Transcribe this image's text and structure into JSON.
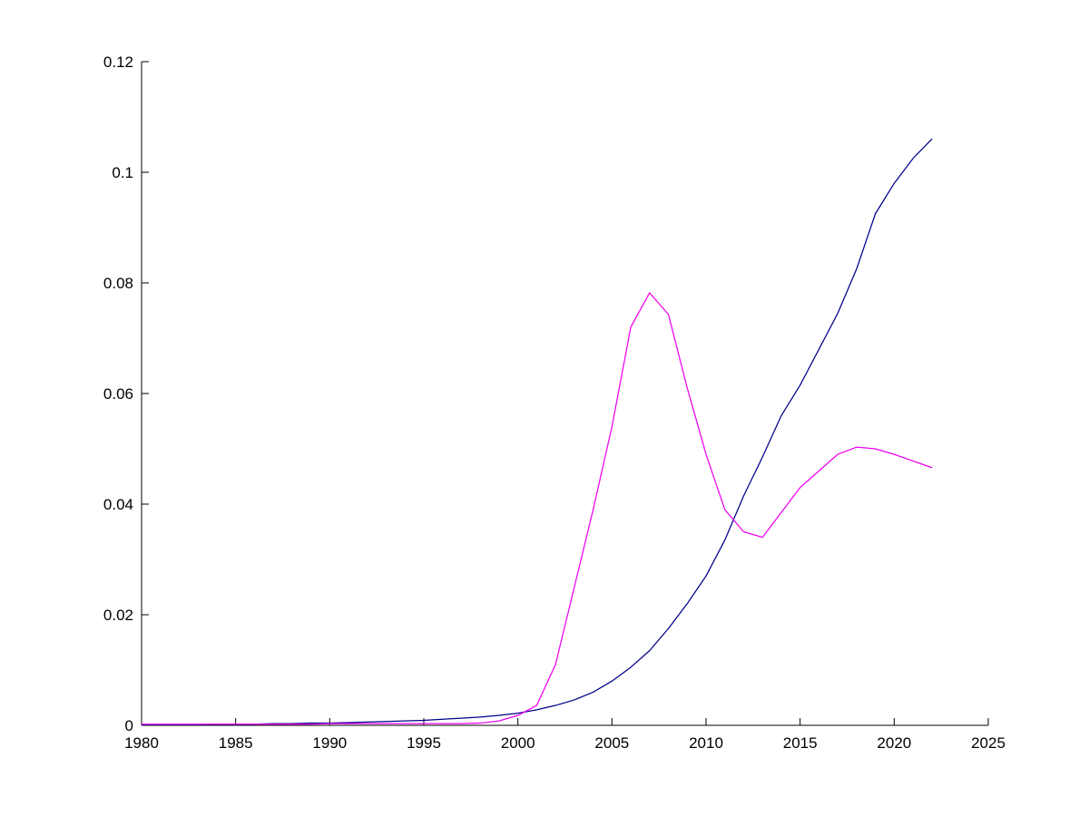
{
  "figure": {
    "background_color": "#ffffff",
    "axis_color": "#000000",
    "title": "",
    "legend": null
  },
  "chart_data": {
    "type": "line",
    "title": "",
    "xlabel": "",
    "ylabel": "",
    "xlim": [
      1980,
      2025
    ],
    "ylim": [
      0,
      0.12
    ],
    "grid": false,
    "legend_position": "none",
    "box": "L-shaped (left and bottom axes only, inward ticks)",
    "xticks": {
      "values": [
        1980,
        1985,
        1990,
        1995,
        2000,
        2005,
        2010,
        2015,
        2020,
        2025
      ],
      "labels": [
        "1980",
        "1985",
        "1990",
        "1995",
        "2000",
        "2005",
        "2010",
        "2015",
        "2020",
        "2025"
      ]
    },
    "yticks": {
      "values": [
        0,
        0.02,
        0.04,
        0.06,
        0.08,
        0.1,
        0.12
      ],
      "labels": [
        "0",
        "0.02",
        "0.04",
        "0.06",
        "0.08",
        "0.1",
        "0.12"
      ]
    },
    "x": [
      1980,
      1981,
      1982,
      1983,
      1984,
      1985,
      1986,
      1987,
      1988,
      1989,
      1990,
      1991,
      1992,
      1993,
      1994,
      1995,
      1996,
      1997,
      1998,
      1999,
      2000,
      2001,
      2002,
      2003,
      2004,
      2005,
      2006,
      2007,
      2008,
      2009,
      2010,
      2011,
      2012,
      2013,
      2014,
      2015,
      2016,
      2017,
      2018,
      2019,
      2020,
      2021,
      2022
    ],
    "series": [
      {
        "name": "dark-blue-series",
        "color": "#00008B",
        "values": [
          0.0001,
          0.0001,
          0.0001,
          0.0001,
          0.0002,
          0.0002,
          0.0002,
          0.0003,
          0.0003,
          0.0004,
          0.0004,
          0.0005,
          0.0006,
          0.0007,
          0.0008,
          0.0009,
          0.0011,
          0.0013,
          0.0015,
          0.0018,
          0.0022,
          0.0028,
          0.0036,
          0.0046,
          0.006,
          0.008,
          0.0105,
          0.0135,
          0.0175,
          0.022,
          0.027,
          0.0335,
          0.0415,
          0.0485,
          0.056,
          0.0615,
          0.068,
          0.0745,
          0.0825,
          0.0925,
          0.098,
          0.1025,
          0.106
        ]
      },
      {
        "name": "magenta-series",
        "color": "#EE00EE",
        "values": [
          0.0002,
          0.0002,
          0.0002,
          0.0002,
          0.0002,
          0.0002,
          0.0002,
          0.0002,
          0.0002,
          0.0002,
          0.0003,
          0.0003,
          0.0003,
          0.0003,
          0.0003,
          0.0003,
          0.0003,
          0.0003,
          0.0004,
          0.0008,
          0.0018,
          0.0036,
          0.011,
          0.025,
          0.039,
          0.054,
          0.072,
          0.0782,
          0.0743,
          0.061,
          0.049,
          0.039,
          0.035,
          0.034,
          0.0385,
          0.043,
          0.046,
          0.049,
          0.0503,
          0.05,
          0.049,
          0.0478,
          0.0466
        ]
      }
    ],
    "annotations": {
      "magenta_peak": {
        "x": 2007,
        "y": 0.0782
      },
      "magenta_local_min": {
        "x": 2013,
        "y": 0.034
      },
      "magenta_second_peak": {
        "x": 2018,
        "y": 0.0503
      },
      "lines_cross": {
        "x": 2011.3,
        "y": 0.0377
      },
      "blue_end": {
        "x": 2022,
        "y": 0.106
      },
      "magenta_end": {
        "x": 2022,
        "y": 0.0466
      }
    }
  }
}
